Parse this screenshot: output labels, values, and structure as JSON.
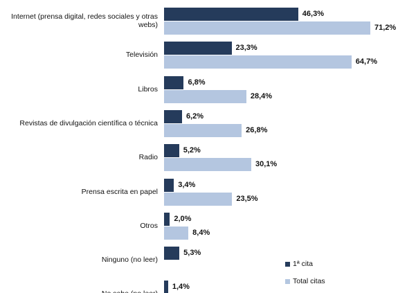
{
  "chart_data": {
    "type": "bar",
    "orientation": "horizontal",
    "categories": [
      "Internet (prensa digital, redes sociales y otras webs)",
      "Televisión",
      "Libros",
      "Revistas de divulgación científica o técnica",
      "Radio",
      "Prensa escrita en papel",
      "Otros",
      "Ninguno (no leer)",
      "No sabe (no leer)"
    ],
    "series": [
      {
        "name": "1ª cita",
        "color": "#253b5b",
        "values": [
          46.3,
          23.3,
          6.8,
          6.2,
          5.2,
          3.4,
          2.0,
          5.3,
          1.4
        ],
        "value_labels": [
          "46,3%",
          "23,3%",
          "6,8%",
          "6,2%",
          "5,2%",
          "3,4%",
          "2,0%",
          "5,3%",
          "1,4%"
        ]
      },
      {
        "name": "Total citas",
        "color": "#b4c6e0",
        "values": [
          71.2,
          64.7,
          28.4,
          26.8,
          30.1,
          23.5,
          8.4,
          null,
          null
        ],
        "value_labels": [
          "71,2%",
          "64,7%",
          "28,4%",
          "26,8%",
          "30,1%",
          "23,5%",
          "8,4%",
          null,
          null
        ]
      }
    ],
    "legend": "bottom-right"
  }
}
